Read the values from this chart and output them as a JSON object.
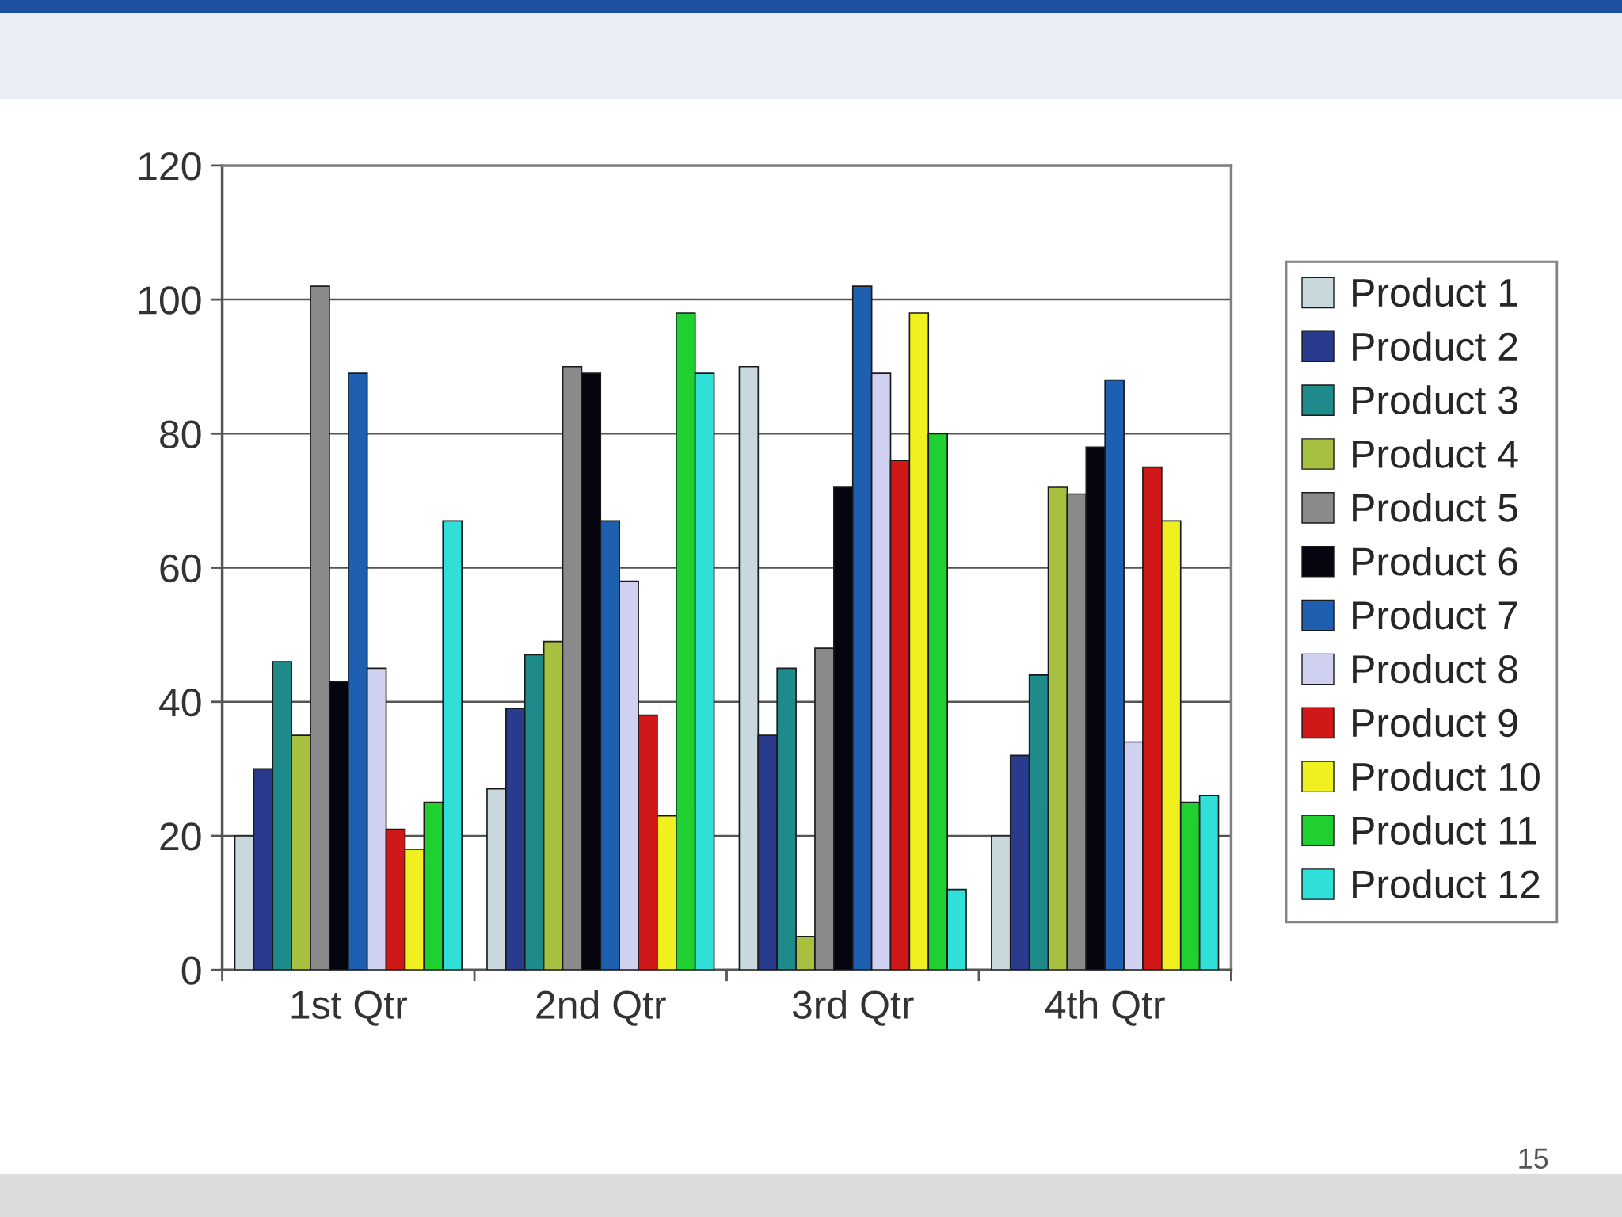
{
  "chart_data": {
    "type": "bar",
    "categories": [
      "1st Qtr",
      "2nd Qtr",
      "3rd Qtr",
      "4th Qtr"
    ],
    "series": [
      {
        "name": "Product 1",
        "color": "#c8d8dc",
        "values": [
          20,
          27,
          90,
          20
        ]
      },
      {
        "name": "Product 2",
        "color": "#2a3a8c",
        "values": [
          30,
          39,
          35,
          32
        ]
      },
      {
        "name": "Product 3",
        "color": "#1f8a8a",
        "values": [
          46,
          47,
          45,
          44
        ]
      },
      {
        "name": "Product 4",
        "color": "#a8c040",
        "values": [
          35,
          49,
          5,
          72
        ]
      },
      {
        "name": "Product 5",
        "color": "#8a8a8a",
        "values": [
          102,
          90,
          48,
          71
        ]
      },
      {
        "name": "Product 6",
        "color": "#050510",
        "values": [
          43,
          89,
          72,
          78
        ]
      },
      {
        "name": "Product 7",
        "color": "#1f5fb0",
        "values": [
          89,
          67,
          102,
          88
        ]
      },
      {
        "name": "Product 8",
        "color": "#d0d0f0",
        "values": [
          45,
          58,
          89,
          34
        ]
      },
      {
        "name": "Product 9",
        "color": "#d01818",
        "values": [
          21,
          38,
          76,
          75
        ]
      },
      {
        "name": "Product 10",
        "color": "#f0f020",
        "values": [
          18,
          23,
          98,
          67
        ]
      },
      {
        "name": "Product 11",
        "color": "#20d030",
        "values": [
          25,
          98,
          80,
          25
        ]
      },
      {
        "name": "Product 12",
        "color": "#30e0d8",
        "values": [
          67,
          89,
          12,
          26
        ]
      }
    ],
    "ylim": [
      0,
      120
    ],
    "yticks": [
      0,
      20,
      40,
      60,
      80,
      100,
      120
    ],
    "grid": "y",
    "legend": "right",
    "annotations": [
      "15"
    ]
  }
}
